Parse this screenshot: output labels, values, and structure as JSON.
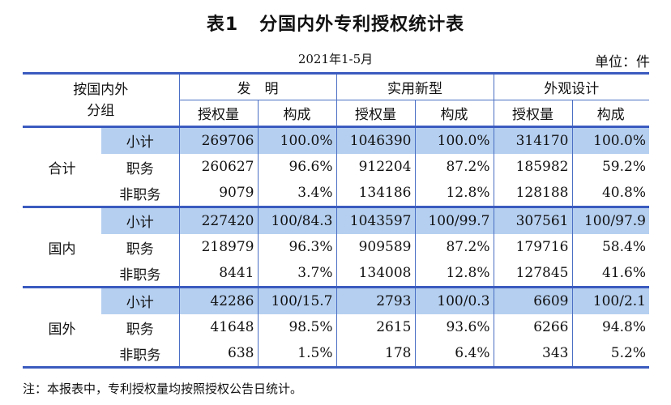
{
  "title": "表1   分国内外专利授权统计表",
  "date": "2021年1-5月",
  "unit": "单位：件",
  "header": {
    "corner": "按国内外\n分组",
    "categories": [
      "发　明",
      "实用新型",
      "外观设计"
    ],
    "sub_quantity": "授权量",
    "sub_share": "构成"
  },
  "groups": [
    {
      "name": "合计",
      "rows": [
        {
          "label": "小计",
          "values": [
            "269706",
            "100.0%",
            "1046390",
            "100.0%",
            "314170",
            "100.0%"
          ]
        },
        {
          "label": "职务",
          "values": [
            "260627",
            "96.6%",
            "912204",
            "87.2%",
            "185982",
            "59.2%"
          ]
        },
        {
          "label": "非职务",
          "values": [
            "9079",
            "3.4%",
            "134186",
            "12.8%",
            "128188",
            "40.8%"
          ]
        }
      ]
    },
    {
      "name": "国内",
      "rows": [
        {
          "label": "小计",
          "values": [
            "227420",
            "100/84.3",
            "1043597",
            "100/99.7",
            "307561",
            "100/97.9"
          ]
        },
        {
          "label": "职务",
          "values": [
            "218979",
            "96.3%",
            "909589",
            "87.2%",
            "179716",
            "58.4%"
          ]
        },
        {
          "label": "非职务",
          "values": [
            "8441",
            "3.7%",
            "134008",
            "12.8%",
            "127845",
            "41.6%"
          ]
        }
      ]
    },
    {
      "name": "国外",
      "rows": [
        {
          "label": "小计",
          "values": [
            "42286",
            "100/15.7",
            "2793",
            "100/0.3",
            "6609",
            "100/2.1"
          ]
        },
        {
          "label": "职务",
          "values": [
            "41648",
            "98.5%",
            "2615",
            "93.6%",
            "6266",
            "94.8%"
          ]
        },
        {
          "label": "非职务",
          "values": [
            "638",
            "1.5%",
            "178",
            "6.4%",
            "343",
            "5.2%"
          ]
        }
      ]
    }
  ],
  "note": "注：本报表中，专利授权量均按照授权公告日统计。",
  "colors": {
    "rule": "#3b5bbf",
    "grid": "#4a6fc4",
    "subtotal_fill": "#b5cff0"
  }
}
